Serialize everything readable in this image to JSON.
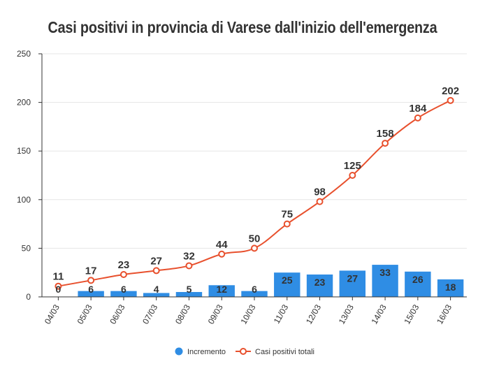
{
  "chart_data": {
    "type": "bar",
    "title": "Casi positivi in provincia di Varese dall'inizio dell'emergenza",
    "xlabel": "",
    "ylabel": "",
    "categories": [
      "04/03",
      "05/03",
      "06/03",
      "07/03",
      "08/03",
      "09/03",
      "10/03",
      "11/03",
      "12/03",
      "13/03",
      "14/03",
      "15/03",
      "16/03"
    ],
    "ylim": [
      0,
      250
    ],
    "yticks": [
      0,
      50,
      100,
      150,
      200,
      250
    ],
    "grid": true,
    "legend_position": "bottom",
    "series": [
      {
        "name": "Incremento",
        "type": "bar",
        "color": "#2f8de4",
        "values": [
          0,
          6,
          6,
          4,
          5,
          12,
          6,
          25,
          23,
          27,
          33,
          26,
          18
        ]
      },
      {
        "name": "Casi positivi totali",
        "type": "line",
        "color": "#e8502d",
        "values": [
          11,
          17,
          23,
          27,
          32,
          44,
          50,
          75,
          98,
          125,
          158,
          184,
          202
        ]
      }
    ]
  }
}
